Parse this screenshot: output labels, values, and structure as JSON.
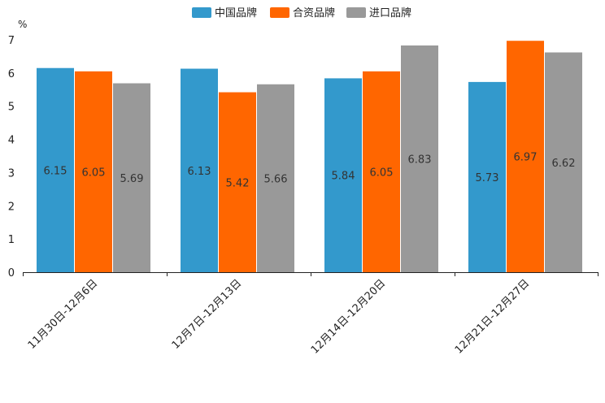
{
  "chart_data": {
    "type": "bar",
    "title": "",
    "xlabel": "",
    "ylabel": "%",
    "ylim": [
      0,
      7
    ],
    "yticks": [
      0,
      1,
      2,
      3,
      4,
      5,
      6,
      7
    ],
    "legend_position": "top-center",
    "grid": false,
    "categories": [
      "11月30日-12月6日",
      "12月7日-12月13日",
      "12月14日-12月20日",
      "12月21日-12月27日"
    ],
    "series": [
      {
        "name": "中国品牌",
        "color": "#3399CC",
        "values": [
          6.15,
          6.13,
          5.84,
          5.73
        ]
      },
      {
        "name": "合资品牌",
        "color": "#FF6600",
        "values": [
          6.05,
          5.42,
          6.05,
          6.97
        ]
      },
      {
        "name": "进口品牌",
        "color": "#999999",
        "values": [
          5.69,
          5.66,
          6.83,
          6.62
        ]
      }
    ]
  }
}
